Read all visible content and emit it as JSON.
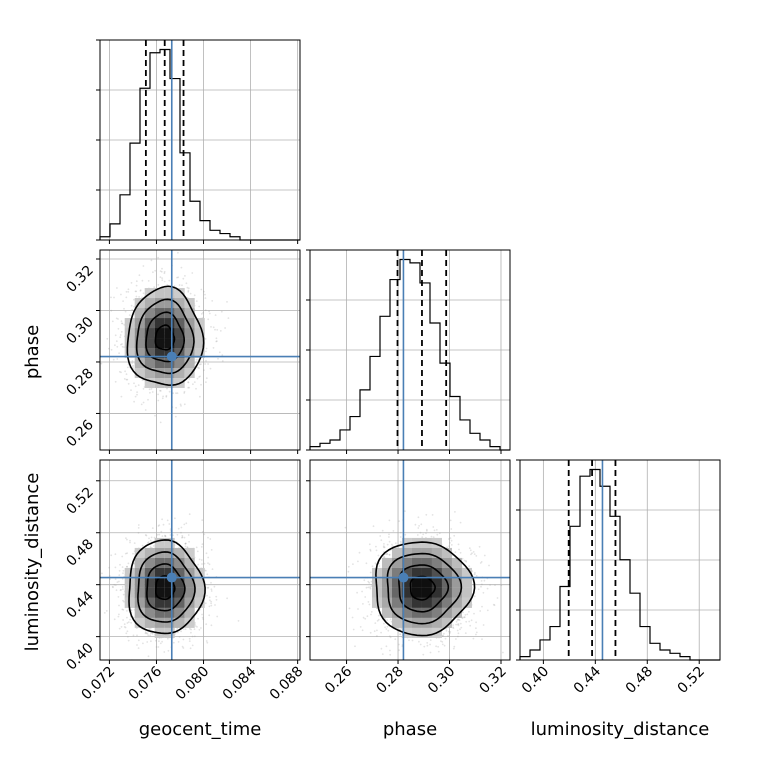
{
  "chart_data": {
    "type": "corner",
    "parameters": [
      {
        "name": "geocent_time",
        "xlabel": "geocent_time",
        "ylabel": "",
        "range": [
          0.0712,
          0.0882
        ],
        "ticks": [
          0.072,
          0.076,
          0.08,
          0.084,
          0.088
        ],
        "tick_labels": [
          "0.072",
          "0.076",
          "0.080",
          "0.084",
          "0.088"
        ],
        "truth": 0.0773,
        "quantiles": [
          0.0751,
          0.0767,
          0.0783
        ],
        "histogram": [
          1,
          5,
          14,
          30,
          47,
          58,
          59,
          50,
          27,
          12,
          6,
          3,
          2,
          1,
          0,
          0,
          0,
          0,
          0,
          0
        ]
      },
      {
        "name": "phase",
        "xlabel": "phase",
        "ylabel": "phase",
        "range": [
          0.2458,
          0.3235
        ],
        "ticks": [
          0.26,
          0.28,
          0.3,
          0.32
        ],
        "tick_labels": [
          "0.26",
          "0.28",
          "0.30",
          "0.32"
        ],
        "truth": 0.2821,
        "quantiles": [
          0.2798,
          0.2893,
          0.2987
        ],
        "histogram": [
          1,
          2,
          3,
          6,
          10,
          18,
          28,
          40,
          51,
          57,
          56,
          50,
          38,
          26,
          16,
          9,
          5,
          3,
          1,
          0
        ]
      },
      {
        "name": "luminosity_distance",
        "xlabel": "luminosity_distance",
        "ylabel": "luminosity_distance",
        "range": [
          0.382,
          0.536
        ],
        "ticks": [
          0.4,
          0.44,
          0.48,
          0.52
        ],
        "tick_labels": [
          "0.40",
          "0.44",
          "0.48",
          "0.52"
        ],
        "truth": 0.4455,
        "quantiles": [
          0.4195,
          0.4375,
          0.4555
        ],
        "histogram": [
          1,
          3,
          6,
          10,
          22,
          40,
          55,
          57,
          52,
          43,
          30,
          20,
          10,
          5,
          3,
          2,
          1,
          0,
          0,
          0
        ]
      }
    ],
    "pairs": [
      {
        "x": "geocent_time",
        "y": "phase",
        "center": [
          0.0767,
          0.2893
        ],
        "spread": [
          0.0016,
          0.0095
        ],
        "correlation": 0.0
      },
      {
        "x": "geocent_time",
        "y": "luminosity_distance",
        "center": [
          0.0767,
          0.4375
        ],
        "spread": [
          0.0016,
          0.018
        ],
        "correlation": 0.0
      },
      {
        "x": "phase",
        "y": "luminosity_distance",
        "center": [
          0.2893,
          0.4375
        ],
        "spread": [
          0.0095,
          0.018
        ],
        "correlation": 0.0
      }
    ],
    "contour_levels_sigma": [
      0.5,
      1.0,
      1.5,
      2.0
    ],
    "truth_color": "#4a7fb5",
    "grid": true,
    "legend": "none"
  }
}
